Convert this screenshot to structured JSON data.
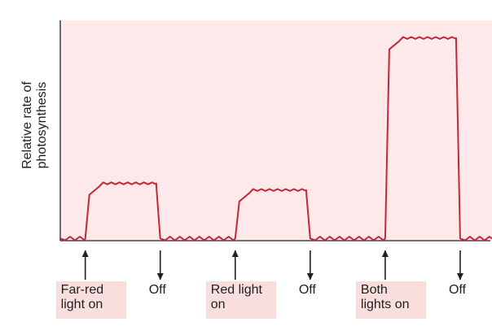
{
  "chart_data": {
    "type": "line",
    "title": "",
    "xlabel": "",
    "ylabel": "Relative rate of photosynthesis",
    "grid": false,
    "background_color": "#fde9e9",
    "line_color": "#c3273a",
    "axis_color": "#1f1f1f",
    "label_box_color": "#f9dede",
    "series": [
      {
        "segments": [
          {
            "state": "baseline",
            "x_start": 0,
            "x_end": 11,
            "y": 0.01
          },
          {
            "state": "Far-red light on",
            "x_start": 11,
            "x_end": 44,
            "y": 0.26
          },
          {
            "state": "baseline",
            "x_start": 44,
            "x_end": 77,
            "y": 0.01
          },
          {
            "state": "Red light on",
            "x_start": 77,
            "x_end": 110,
            "y": 0.23
          },
          {
            "state": "baseline",
            "x_start": 110,
            "x_end": 143,
            "y": 0.01
          },
          {
            "state": "Both lights on",
            "x_start": 143,
            "x_end": 176,
            "y": 0.92
          },
          {
            "state": "baseline",
            "x_start": 176,
            "x_end": 190,
            "y": 0.01
          }
        ]
      }
    ],
    "ylim": [
      0,
      1
    ],
    "xlim": [
      0,
      190
    ],
    "annotations": [
      {
        "text_line1": "Far-red",
        "text_line2": "light on",
        "x": 11,
        "direction": "up",
        "boxed": true
      },
      {
        "text_line1": "Off",
        "text_line2": "",
        "x": 44,
        "direction": "down",
        "boxed": false
      },
      {
        "text_line1": "Red light",
        "text_line2": "on",
        "x": 77,
        "direction": "up",
        "boxed": true
      },
      {
        "text_line1": "Off",
        "text_line2": "",
        "x": 110,
        "direction": "down",
        "boxed": false
      },
      {
        "text_line1": "Both",
        "text_line2": "lights on",
        "x": 143,
        "direction": "up",
        "boxed": true
      },
      {
        "text_line1": "Off",
        "text_line2": "",
        "x": 176,
        "direction": "down",
        "boxed": false
      }
    ]
  }
}
